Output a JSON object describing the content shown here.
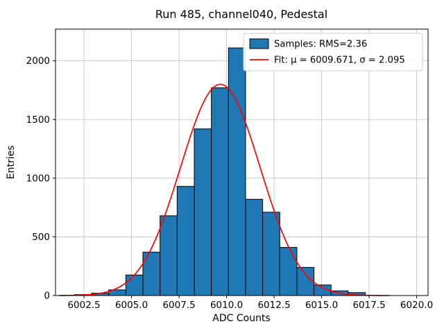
{
  "chart_data": {
    "type": "bar",
    "title": "Run 485, channel040, Pedestal",
    "xlabel": "ADC Counts",
    "ylabel": "Entries",
    "xlim": [
      6001.0,
      6020.6
    ],
    "ylim": [
      0,
      2270
    ],
    "xticks": [
      6002.5,
      6005.0,
      6007.5,
      6010.0,
      6012.5,
      6015.0,
      6017.5,
      6020.0
    ],
    "xtick_labels": [
      "6002.5",
      "6005.0",
      "6007.5",
      "6010.0",
      "6012.5",
      "6015.0",
      "6017.5",
      "6020.0"
    ],
    "yticks": [
      0,
      500,
      1000,
      1500,
      2000
    ],
    "ytick_labels": [
      "0",
      "500",
      "1000",
      "1500",
      "2000"
    ],
    "grid": true,
    "grid_color": "#c0c0c0",
    "histogram": {
      "bin_start": 6002.0,
      "bin_width": 0.9,
      "counts": [
        8,
        20,
        48,
        175,
        370,
        680,
        930,
        1420,
        1770,
        2110,
        820,
        710,
        410,
        240,
        90,
        40,
        25
      ],
      "fill_color": "#1f77b4",
      "edge_color": "#000000"
    },
    "fit": {
      "type": "gaussian",
      "mu": 6009.671,
      "sigma": 2.095,
      "amplitude": 1800,
      "color": "#ff0000",
      "x_start": 6001.2,
      "x_end": 6018.6
    },
    "legend": {
      "position": "upper-right",
      "entries": [
        {
          "label": "Samples: RMS=2.36",
          "swatch": "patch",
          "color": "#1f77b4",
          "edge": "#000000"
        },
        {
          "label": "Fit: μ = 6009.671, σ = 2.095",
          "swatch": "line",
          "color": "#ff0000"
        }
      ]
    }
  }
}
